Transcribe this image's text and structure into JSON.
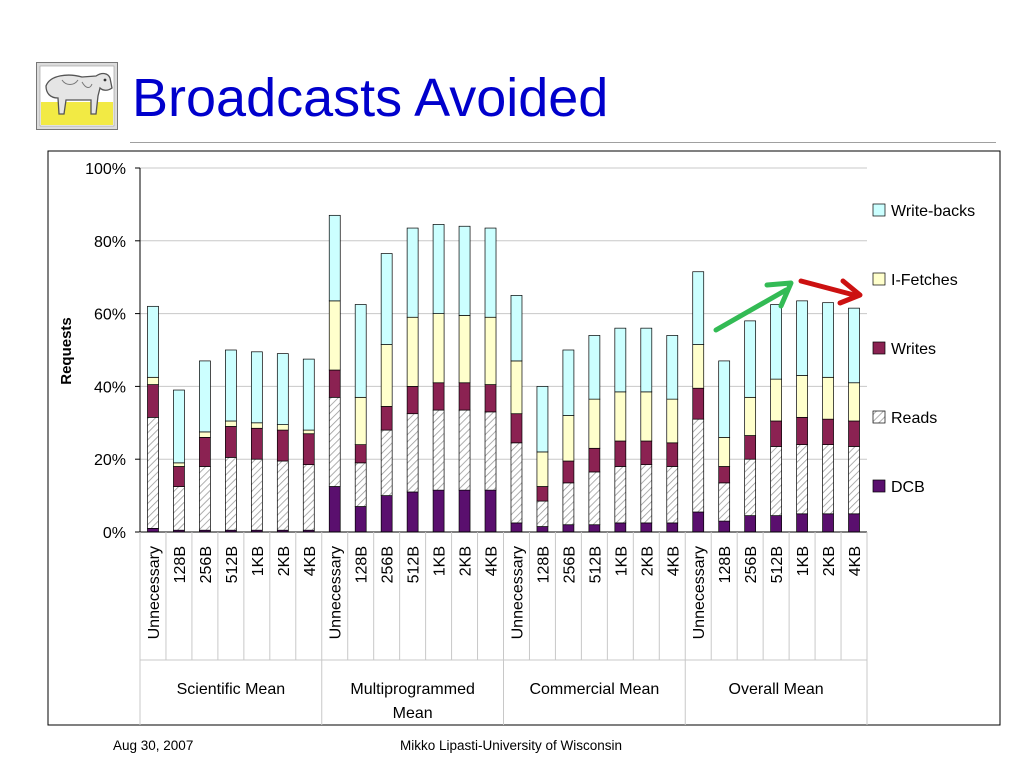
{
  "slide": {
    "title": "Broadcasts Avoided",
    "footer_date": "Aug 30, 2007",
    "footer_author": "Mikko Lipasti-University of Wisconsin"
  },
  "chart_data": {
    "type": "bar",
    "stacked": true,
    "ylabel": "Requests",
    "yticks": [
      "0%",
      "20%",
      "40%",
      "60%",
      "80%",
      "100%"
    ],
    "ylim": [
      0,
      100
    ],
    "grid": true,
    "legend_position": "right",
    "groups": [
      {
        "name": "Scientific Mean",
        "categories": [
          "Unnecessary",
          "128B",
          "256B",
          "512B",
          "1KB",
          "2KB",
          "4KB"
        ]
      },
      {
        "name": "Multiprogrammed Mean",
        "categories": [
          "Unnecessary",
          "128B",
          "256B",
          "512B",
          "1KB",
          "2KB",
          "4KB"
        ]
      },
      {
        "name": "Commercial Mean",
        "categories": [
          "Unnecessary",
          "128B",
          "256B",
          "512B",
          "1KB",
          "2KB",
          "4KB"
        ]
      },
      {
        "name": "Overall Mean",
        "categories": [
          "Unnecessary",
          "128B",
          "256B",
          "512B",
          "1KB",
          "2KB",
          "4KB"
        ]
      }
    ],
    "series": [
      {
        "name": "DCB",
        "color": "#5a0f6e",
        "values": [
          1,
          0.5,
          0.5,
          0.5,
          0.5,
          0.5,
          0.5,
          12.5,
          7,
          10,
          11,
          11.5,
          11.5,
          11.5,
          2.5,
          1.5,
          2,
          2,
          2.5,
          2.5,
          2.5,
          5.5,
          3,
          4.5,
          4.5,
          5,
          5,
          5
        ]
      },
      {
        "name": "Reads",
        "color": "#e8e8e8",
        "values": [
          30.5,
          12,
          17.5,
          20,
          19.5,
          19,
          18,
          24.5,
          12,
          18,
          21.5,
          22,
          22,
          21.5,
          22,
          7,
          11.5,
          14.5,
          15.5,
          16,
          15.5,
          25.5,
          10.5,
          15.5,
          19,
          19,
          19,
          18.5
        ]
      },
      {
        "name": "Writes",
        "color": "#8b2252",
        "values": [
          9,
          5.5,
          8,
          8.5,
          8.5,
          8.5,
          8.5,
          7.5,
          5,
          6.5,
          7.5,
          7.5,
          7.5,
          7.5,
          8,
          4,
          6,
          6.5,
          7,
          6.5,
          6.5,
          8.5,
          4.5,
          6.5,
          7,
          7.5,
          7,
          7
        ]
      },
      {
        "name": "I-Fetches",
        "color": "#ffffcc",
        "values": [
          2,
          1,
          1.5,
          1.5,
          1.5,
          1.5,
          1,
          19,
          13,
          17,
          19,
          19,
          18.5,
          18.5,
          14.5,
          9.5,
          12.5,
          13.5,
          13.5,
          13.5,
          12,
          12,
          8,
          10.5,
          11.5,
          11.5,
          11.5,
          10.5
        ]
      },
      {
        "name": "Write-backs",
        "color": "#ccffff",
        "values": [
          19.5,
          20,
          19.5,
          19.5,
          19.5,
          19.5,
          19.5,
          23.5,
          25.5,
          25,
          24.5,
          24.5,
          24.5,
          24.5,
          18,
          18,
          18,
          17.5,
          17.5,
          17.5,
          17.5,
          20,
          21,
          21,
          20.5,
          20.5,
          20.5,
          20.5
        ]
      }
    ]
  },
  "annotations": {
    "green_arrow_color": "#33bb55",
    "red_arrow_color": "#cc1111"
  }
}
